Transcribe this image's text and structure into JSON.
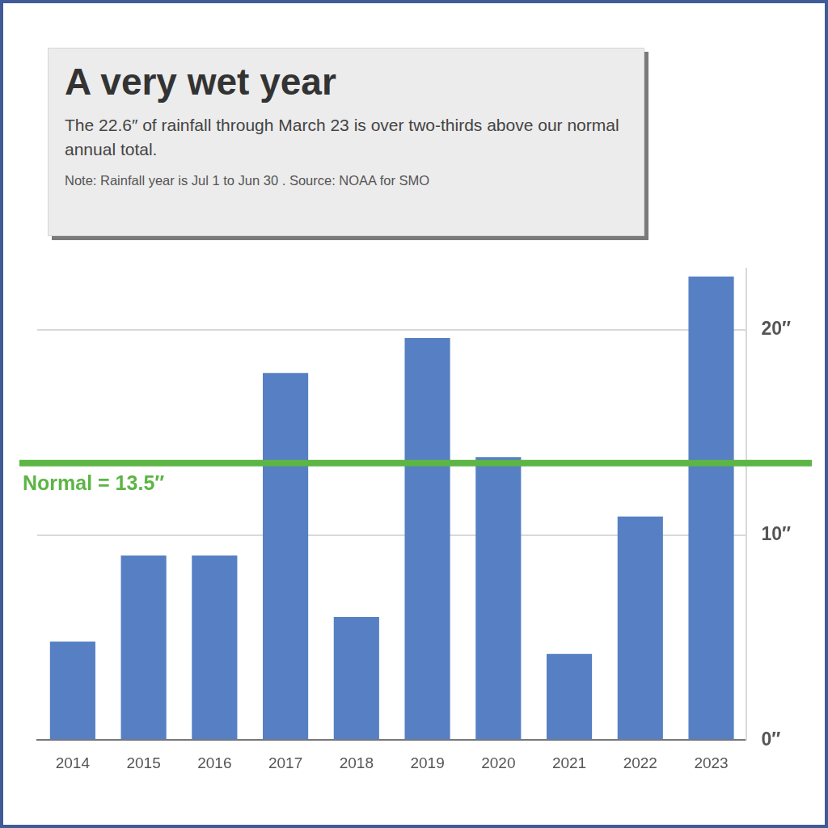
{
  "chart_data": {
    "type": "bar",
    "title": "A very wet year",
    "subtitle": "The 22.6″ of rainfall through March 23 is over two-thirds above our normal annual total.",
    "note": "Note: Rainfall year is Jul 1 to Jun 30 . Source: NOAA for SMO",
    "categories": [
      "2014",
      "2015",
      "2016",
      "2017",
      "2018",
      "2019",
      "2020",
      "2021",
      "2022",
      "2023"
    ],
    "values": [
      4.8,
      9.0,
      9.0,
      17.9,
      6.0,
      19.6,
      13.8,
      4.2,
      10.9,
      22.6
    ],
    "color": "#5680c3",
    "ylim": [
      0,
      23
    ],
    "yticks": [
      {
        "value": 0,
        "label": "0″"
      },
      {
        "value": 10,
        "label": "10″"
      },
      {
        "value": 20,
        "label": "20″"
      }
    ],
    "grid": true,
    "reference_line": {
      "value": 13.5,
      "label": "Normal = 13.5″",
      "color": "#5cb544"
    }
  }
}
